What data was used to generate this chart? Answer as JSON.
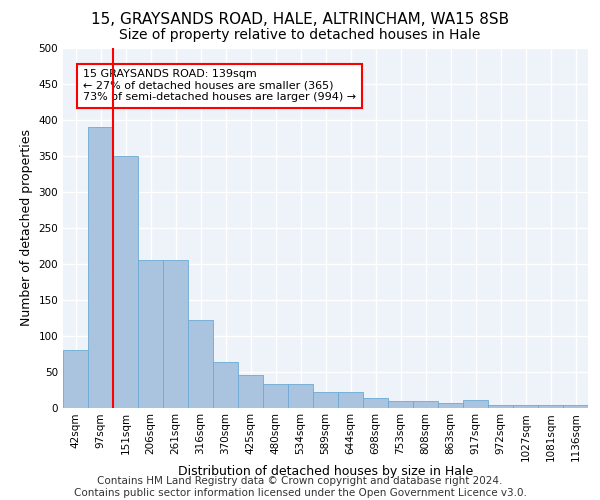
{
  "title1": "15, GRAYSANDS ROAD, HALE, ALTRINCHAM, WA15 8SB",
  "title2": "Size of property relative to detached houses in Hale",
  "xlabel": "Distribution of detached houses by size in Hale",
  "ylabel": "Number of detached properties",
  "categories": [
    "42sqm",
    "97sqm",
    "151sqm",
    "206sqm",
    "261sqm",
    "316sqm",
    "370sqm",
    "425sqm",
    "480sqm",
    "534sqm",
    "589sqm",
    "644sqm",
    "698sqm",
    "753sqm",
    "808sqm",
    "863sqm",
    "917sqm",
    "972sqm",
    "1027sqm",
    "1081sqm",
    "1136sqm"
  ],
  "values": [
    80,
    390,
    350,
    205,
    205,
    122,
    63,
    45,
    32,
    32,
    22,
    22,
    13,
    9,
    9,
    6,
    10,
    3,
    3,
    3,
    4
  ],
  "bar_color": "#aac4e0",
  "bar_edge_color": "#6aaad4",
  "vline_x_index": 1,
  "vline_color": "red",
  "annotation_text": "15 GRAYSANDS ROAD: 139sqm\n← 27% of detached houses are smaller (365)\n73% of semi-detached houses are larger (994) →",
  "annotation_box_color": "white",
  "annotation_box_edge": "red",
  "footer": "Contains HM Land Registry data © Crown copyright and database right 2024.\nContains public sector information licensed under the Open Government Licence v3.0.",
  "ylim": [
    0,
    500
  ],
  "yticks": [
    0,
    50,
    100,
    150,
    200,
    250,
    300,
    350,
    400,
    450,
    500
  ],
  "background_color": "#eef2f9",
  "grid_color": "white",
  "title1_fontsize": 11,
  "title2_fontsize": 10,
  "xlabel_fontsize": 9,
  "ylabel_fontsize": 9,
  "tick_fontsize": 7.5,
  "footer_fontsize": 7.5,
  "annot_fontsize": 8
}
